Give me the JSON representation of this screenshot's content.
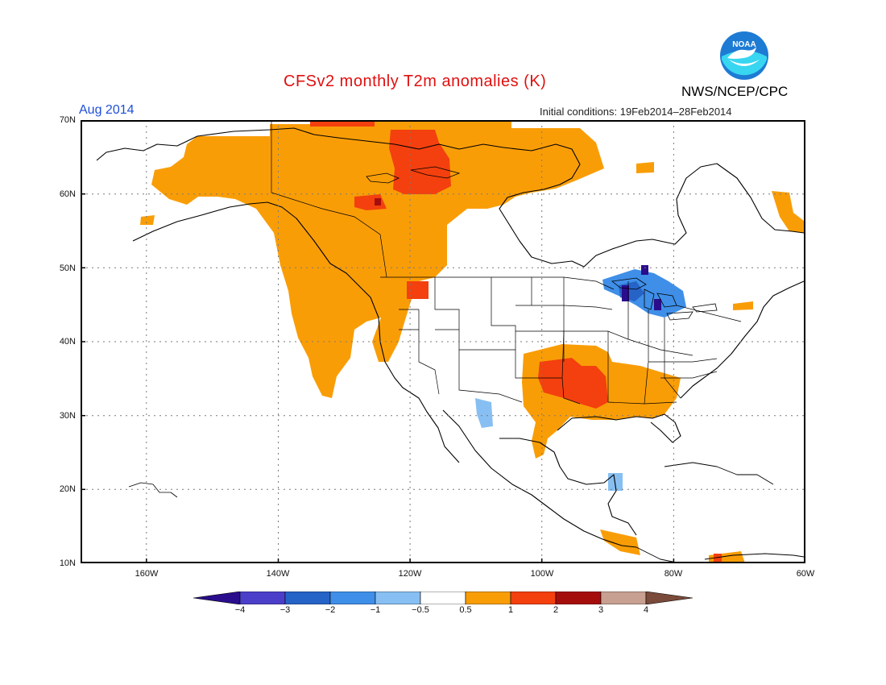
{
  "header": {
    "title": "CFSv2 monthly T2m anomalies (K)",
    "month": "Aug 2014",
    "initial_conditions": "Initial conditions: 19Feb2014–28Feb2014",
    "agency": "NWS/NCEP/CPC",
    "logo_text": "NOAA"
  },
  "map": {
    "region": "North America",
    "lon_range": [
      -170,
      -60
    ],
    "lat_range": [
      10,
      70
    ],
    "lat_labels": [
      "70N",
      "60N",
      "50N",
      "40N",
      "30N",
      "20N",
      "10N"
    ],
    "lon_labels": [
      "160W",
      "140W",
      "120W",
      "100W",
      "80W",
      "60W"
    ],
    "grid": "dotted",
    "anomaly_areas": [
      {
        "name": "Alaska interior and western Canada",
        "category": "0.5 to 1"
      },
      {
        "name": "Yukon and Northwest Territories core",
        "category": "1 to 2"
      },
      {
        "name": "Pacific Northwest and California coast",
        "category": "0.5 to 1"
      },
      {
        "name": "Southern Plains and Lower Mississippi",
        "category": "1 to 2"
      },
      {
        "name": "Southeast US",
        "category": "0.5 to 1"
      },
      {
        "name": "Great Lakes",
        "category": "-1 to -3"
      },
      {
        "name": "Northern Mexico",
        "category": "-0.5 to -1"
      },
      {
        "name": "Central America",
        "category": "0.5 to 1"
      },
      {
        "name": "Northern South America",
        "category": "0.5 to 2"
      }
    ]
  },
  "colorbar": {
    "labels": [
      "−4",
      "−3",
      "−2",
      "−1",
      "−0.5",
      "0.5",
      "1",
      "2",
      "3",
      "4"
    ],
    "colors": [
      "#2a0d8c",
      "#4b3fc9",
      "#2663c7",
      "#3f8fe8",
      "#87bff2",
      "#ffffff",
      "#f99d07",
      "#f3400e",
      "#a50d0d",
      "#c7a092",
      "#7a4a3a"
    ]
  }
}
